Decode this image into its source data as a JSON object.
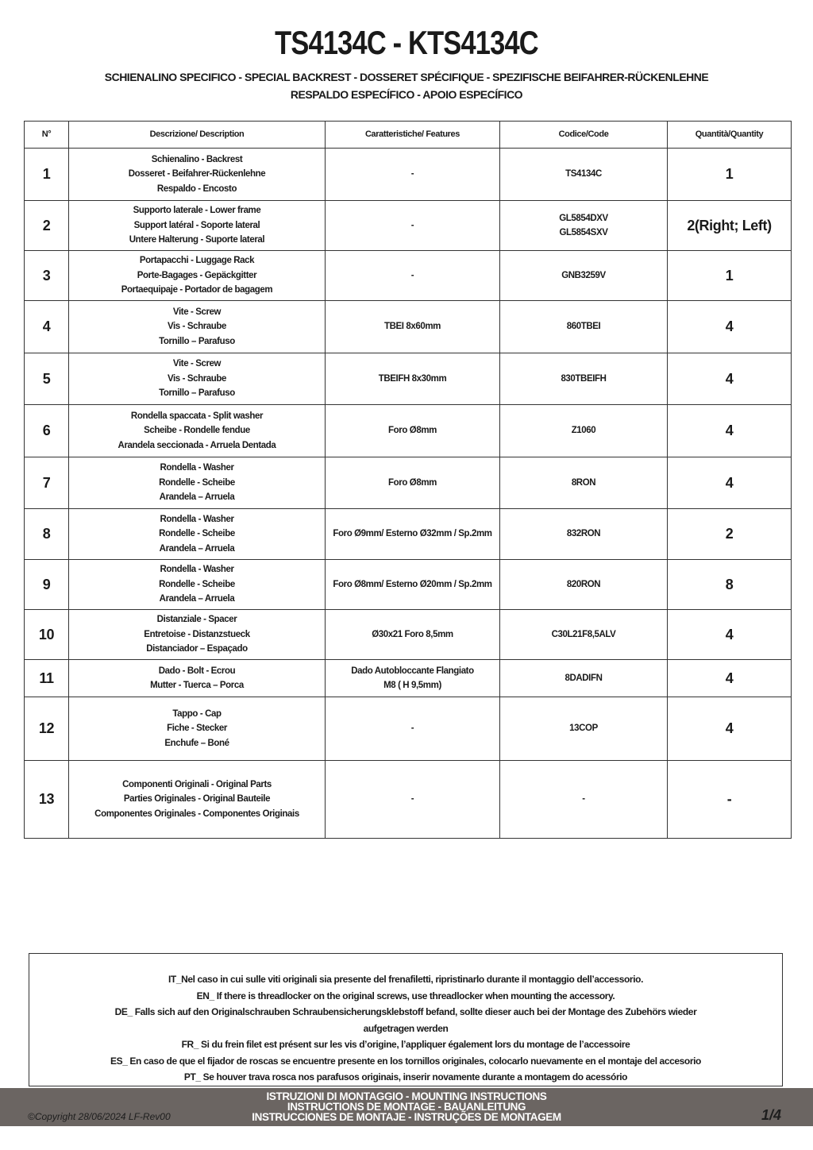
{
  "title": "TS4134C - KTS4134C",
  "subtitle_lines": [
    "SCHIENALINO SPECIFICO - SPECIAL BACKREST - DOSSERET SPÉCIFIQUE - SPEZIFISCHE BEIFAHRER-RÜCKENLEHNE",
    "RESPALDO ESPECÍFICO - APOIO ESPECÍFICO"
  ],
  "table": {
    "headers": [
      "N°",
      "Descrizione/ Description",
      "Caratteristiche/ Features",
      "Codice/Code",
      "Quantità/Quantity"
    ],
    "rows": [
      {
        "n": "1",
        "desc": [
          "Schienalino - Backrest",
          "Dosseret - Beifahrer-Rückenlehne",
          "Respaldo - Encosto"
        ],
        "features": [
          "-"
        ],
        "code": [
          "TS4134C"
        ],
        "qty": "1"
      },
      {
        "n": "2",
        "desc": [
          "Supporto laterale - Lower frame",
          "Support latéral - Soporte lateral",
          "Untere Halterung - Suporte lateral"
        ],
        "features": [
          "-"
        ],
        "code": [
          "GL5854DXV",
          "GL5854SXV"
        ],
        "qty": "2(Right; Left)"
      },
      {
        "n": "3",
        "desc": [
          "Portapacchi - Luggage Rack",
          "Porte-Bagages - Gepäckgitter",
          "Portaequipaje - Portador de bagagem"
        ],
        "features": [
          "-"
        ],
        "code": [
          "GNB3259V"
        ],
        "qty": "1"
      },
      {
        "n": "4",
        "desc": [
          "Vite - Screw",
          "Vis - Schraube",
          "Tornillo – Parafuso"
        ],
        "features": [
          "TBEI 8x60mm"
        ],
        "code": [
          "860TBEI"
        ],
        "qty": "4"
      },
      {
        "n": "5",
        "desc": [
          "Vite - Screw",
          "Vis - Schraube",
          "Tornillo – Parafuso"
        ],
        "features": [
          "TBEIFH 8x30mm"
        ],
        "code": [
          "830TBEIFH"
        ],
        "qty": "4"
      },
      {
        "n": "6",
        "desc": [
          "Rondella spaccata - Split washer",
          "Scheibe - Rondelle fendue",
          "Arandela seccionada - Arruela Dentada"
        ],
        "features": [
          "Foro Ø8mm"
        ],
        "code": [
          "Z1060"
        ],
        "qty": "4"
      },
      {
        "n": "7",
        "desc": [
          "Rondella - Washer",
          "Rondelle - Scheibe",
          "Arandela – Arruela"
        ],
        "features": [
          "Foro Ø8mm"
        ],
        "code": [
          "8RON"
        ],
        "qty": "4"
      },
      {
        "n": "8",
        "desc": [
          "Rondella - Washer",
          "Rondelle - Scheibe",
          "Arandela – Arruela"
        ],
        "features": [
          "Foro Ø9mm/ Esterno Ø32mm / Sp.2mm"
        ],
        "code": [
          "832RON"
        ],
        "qty": "2"
      },
      {
        "n": "9",
        "desc": [
          "Rondella - Washer",
          "Rondelle - Scheibe",
          "Arandela – Arruela"
        ],
        "features": [
          "Foro Ø8mm/ Esterno Ø20mm / Sp.2mm"
        ],
        "code": [
          "820RON"
        ],
        "qty": "8"
      },
      {
        "n": "10",
        "desc": [
          "Distanziale - Spacer",
          "Entretoise - Distanzstueck",
          "Distanciador – Espaçado"
        ],
        "features": [
          "Ø30x21 Foro 8,5mm"
        ],
        "code": [
          "C30L21F8,5ALV"
        ],
        "qty": "4"
      },
      {
        "n": "11",
        "desc": [
          "Dado - Bolt - Ecrou",
          "Mutter - Tuerca – Porca"
        ],
        "features": [
          "Dado Autobloccante Flangiato",
          "M8 ( H 9,5mm)"
        ],
        "code": [
          "8DADIFN"
        ],
        "qty": "4"
      },
      {
        "n": "12",
        "desc": [
          "Tappo - Cap",
          "Fiche - Stecker",
          "Enchufe – Boné"
        ],
        "features": [
          "-"
        ],
        "code": [
          "13COP"
        ],
        "qty": "4"
      },
      {
        "n": "13",
        "desc": [
          "Componenti Originali - Original Parts",
          "Parties Originales - Original Bauteile",
          "Componentes Originales - Componentes Originais"
        ],
        "features": [
          "-"
        ],
        "code": [
          "-"
        ],
        "qty": "-"
      }
    ]
  },
  "notes": [
    "IT_Nel caso in cui sulle viti originali sia presente del frenafiletti, ripristinarlo durante il montaggio dell’accessorio.",
    "EN_ If there is threadlocker on the original screws, use threadlocker when mounting the accessory.",
    "DE_ Falls sich auf den Originalschrauben Schraubensicherungsklebstoff befand, sollte dieser auch bei der Montage des Zubehörs wieder",
    "aufgetragen werden",
    "FR_ Si du frein filet est présent sur les vis d’origine, l’appliquer également lors du montage de l’accessoire",
    "ES_ En caso de que el fijador de roscas se encuentre presente en los tornillos originales, colocarlo nuevamente en el montaje del accesorio",
    "PT_ Se houver trava rosca nos parafusos originais, inserir novamente durante a montagem do acessório"
  ],
  "footer": {
    "copyright": "©Copyright 28/06/2024 LF-Rev00",
    "title_lines": [
      "ISTRUZIONI DI MONTAGGIO  -  MOUNTING INSTRUCTIONS",
      "INSTRUCTIONS DE MONTAGE - BAUANLEITUNG",
      "INSTRUCCIONES DE MONTAJE - INSTRUÇÕES DE MONTAGEM"
    ],
    "page": "1/4",
    "bar_color": "#6b6562"
  }
}
